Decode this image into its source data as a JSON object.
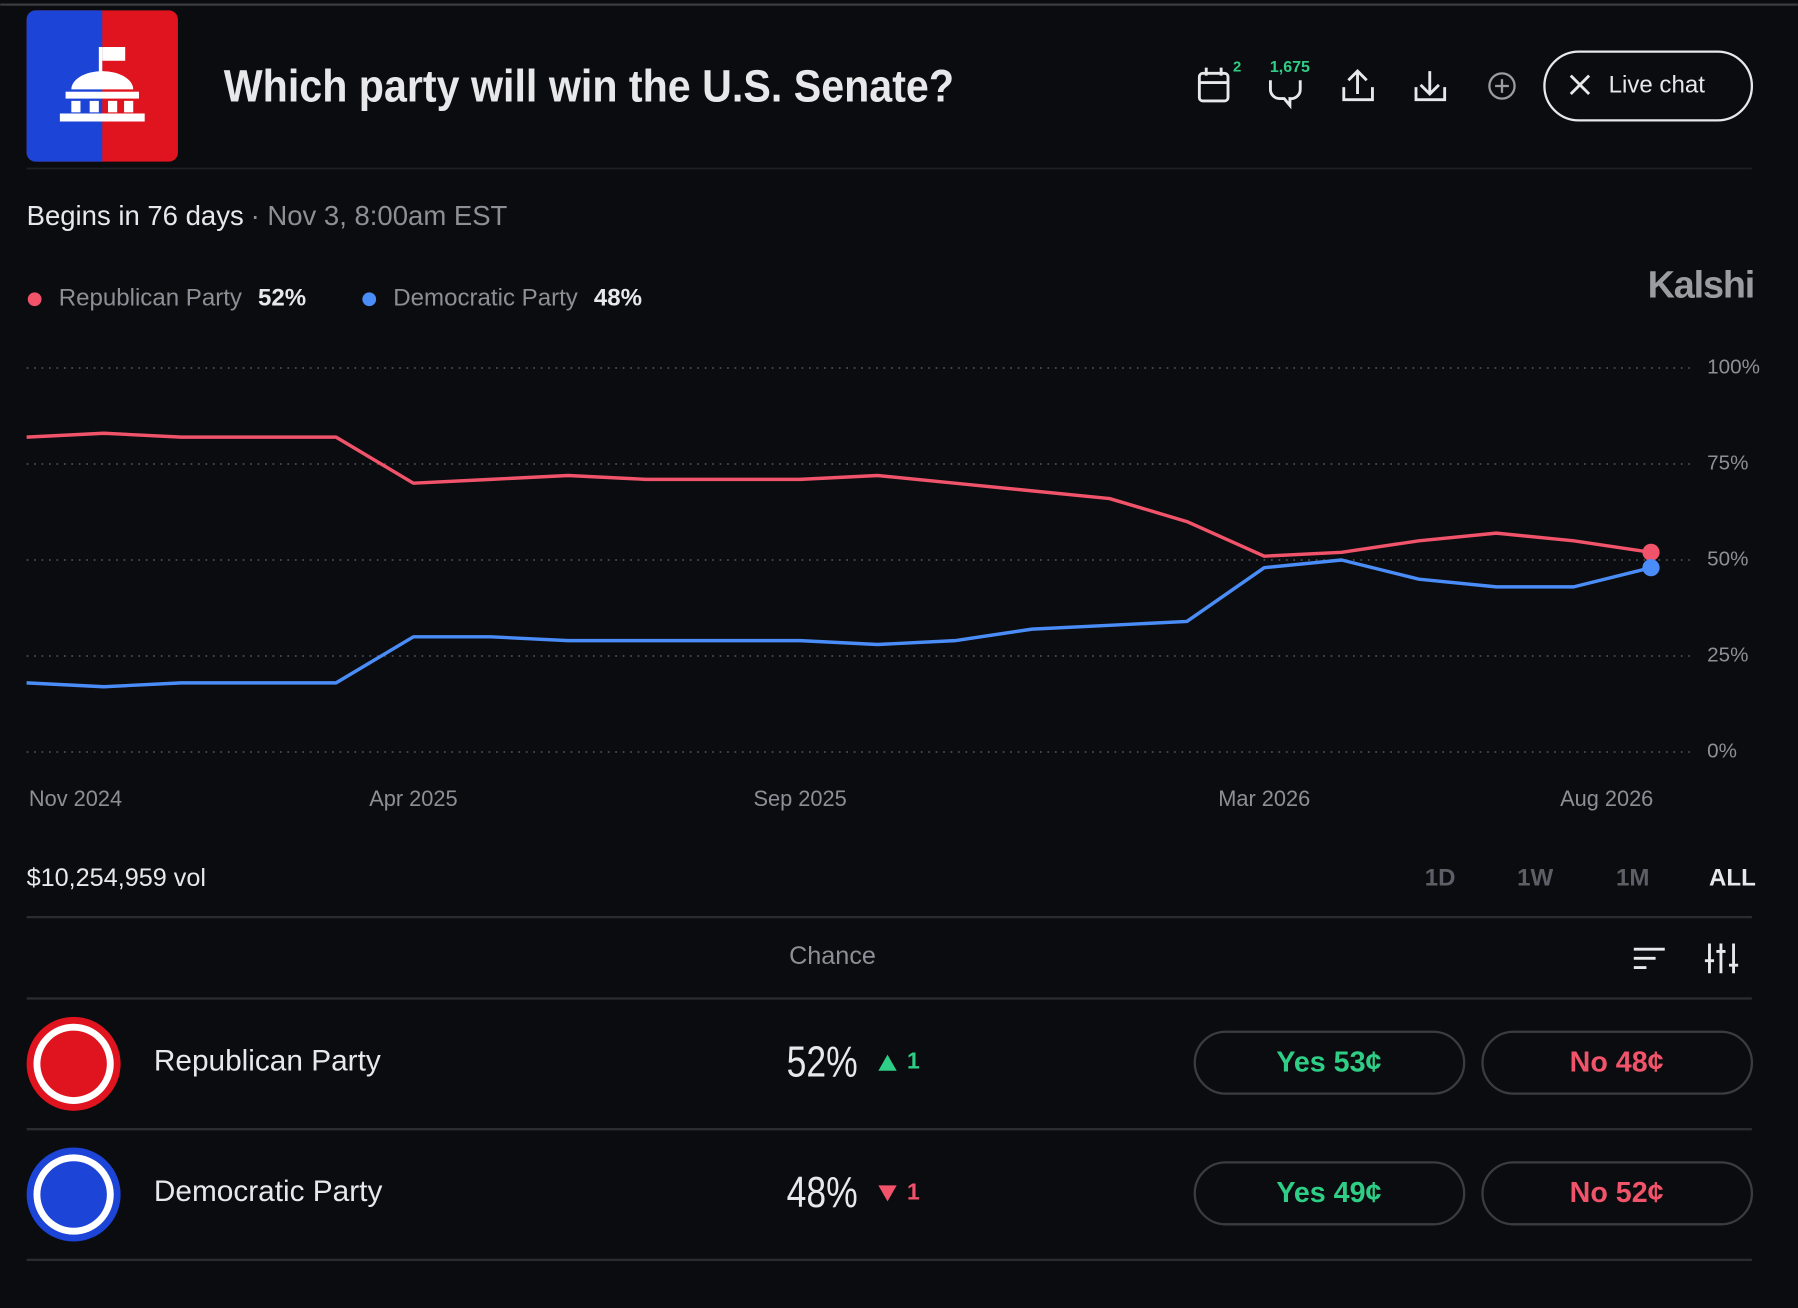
{
  "header": {
    "title": "Which party will win the U.S. Senate?",
    "calendar_badge": "2",
    "comments_badge": "1,675",
    "live_chat": "Live chat",
    "begins": "Begins in 76 days",
    "date": "· Nov 3, 8:00am EST",
    "brand": "Kalshi"
  },
  "chart_data": {
    "type": "line",
    "x": [
      "Nov 2024",
      "Dec 2024",
      "Jan 2025",
      "Feb 2025",
      "Mar 2025",
      "Apr 2025",
      "May 2025",
      "Jun 2025",
      "Jul 2025",
      "Aug 2025",
      "Sep 2025",
      "Oct 2025",
      "Nov 2025",
      "Dec 2025",
      "Jan 2026",
      "Feb 2026",
      "Mar 2026",
      "Apr 2026",
      "May 2026",
      "Jun 2026",
      "Jul 2026",
      "Aug 2026"
    ],
    "series": [
      {
        "name": "Republican Party",
        "color": "#f0536a",
        "values": [
          82,
          83,
          82,
          82,
          82,
          70,
          71,
          72,
          71,
          71,
          71,
          72,
          70,
          68,
          66,
          60,
          51,
          52,
          55,
          57,
          55,
          52
        ]
      },
      {
        "name": "Democratic Party",
        "color": "#4a8df8",
        "values": [
          18,
          17,
          18,
          18,
          18,
          30,
          30,
          29,
          29,
          29,
          29,
          28,
          29,
          32,
          33,
          34,
          48,
          50,
          45,
          43,
          43,
          48
        ]
      }
    ],
    "ylim": [
      0,
      100
    ],
    "yticks": [
      {
        "value": 0,
        "label": "0%"
      },
      {
        "value": 25,
        "label": "25%"
      },
      {
        "value": 50,
        "label": "50%"
      },
      {
        "value": 75,
        "label": "75%"
      },
      {
        "value": 100,
        "label": "100%"
      }
    ],
    "xticks": [
      "Nov 2024",
      "Apr 2025",
      "Sep 2025",
      "Mar 2026",
      "Aug 2026"
    ],
    "grid": true
  },
  "volume": "$10,254,959 vol",
  "ranges": [
    "1D",
    "1W",
    "1M",
    "ALL"
  ],
  "table_header": "Chance",
  "outcomes": [
    {
      "name": "Republican Party",
      "chance": "52%",
      "change": "1",
      "direction": "up",
      "yes": "Yes 53¢",
      "no": "No 48¢"
    },
    {
      "name": "Democratic Party",
      "chance": "48%",
      "change": "1",
      "direction": "down",
      "yes": "Yes 49¢",
      "no": "No 52¢"
    }
  ]
}
